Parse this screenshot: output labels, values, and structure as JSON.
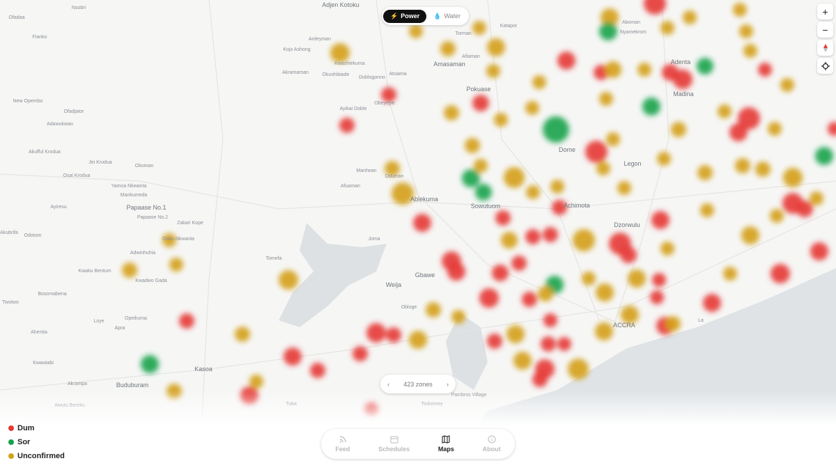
{
  "toggle": {
    "options": [
      "Power",
      "Water"
    ],
    "active": "Power"
  },
  "map": {
    "labels": [
      "Nsobri",
      "Ofadaa",
      "Adjen Kotoku",
      "Fianko",
      "Ardeyman",
      "Kojo Ashong",
      "Amasaman",
      "Akramaman",
      "Okushibiade",
      "Doblogonno",
      "Atsiama",
      "Kwashiekuma",
      "Torman",
      "Katapor",
      "Afiaman",
      "Pokuase",
      "Obeyeyie",
      "Ayikai Doble",
      "New Opembo",
      "Ofadjator",
      "Adawukwao",
      "Dome",
      "Legon",
      "Madina",
      "Adenta",
      "Aboman",
      "Nyamekrom",
      "Akufful Krodua",
      "Jei Krodua",
      "Okoman",
      "Osai Krodua",
      "Manhean",
      "Oduman",
      "Afuaman",
      "Yamoa Nkwanta",
      "Mankumeda",
      "Ablekuma",
      "Sowutuom",
      "Achimota",
      "Ayiresu",
      "Papaase No.1",
      "Papaase No.2",
      "Zakari Kope",
      "Dzorwulu",
      "Akubrifa",
      "Odotom",
      "Onku Nkwanta",
      "Joma",
      "Adwinhuhia",
      "Tomefa",
      "Kwaku Bentum",
      "Kwadwo Gada",
      "Gbawe",
      "Weija",
      "Bosomabena",
      "Twotwo",
      "Obloge",
      "Opeikuma",
      "Loye",
      "Apra",
      "ACCRA",
      "La",
      "Ahentia",
      "Kwawiabi",
      "Kasoa",
      "Akrampa",
      "Buduburam",
      "Pambros Village",
      "Awutu Bereku",
      "Tuba",
      "Tsokomey"
    ]
  },
  "pager": {
    "label": "423 zones"
  },
  "legend": [
    "Dum",
    "Sor",
    "Unconfirmed"
  ],
  "nav": {
    "tabs": [
      "Feed",
      "Schedules",
      "Maps",
      "About"
    ],
    "active": "Maps"
  }
}
